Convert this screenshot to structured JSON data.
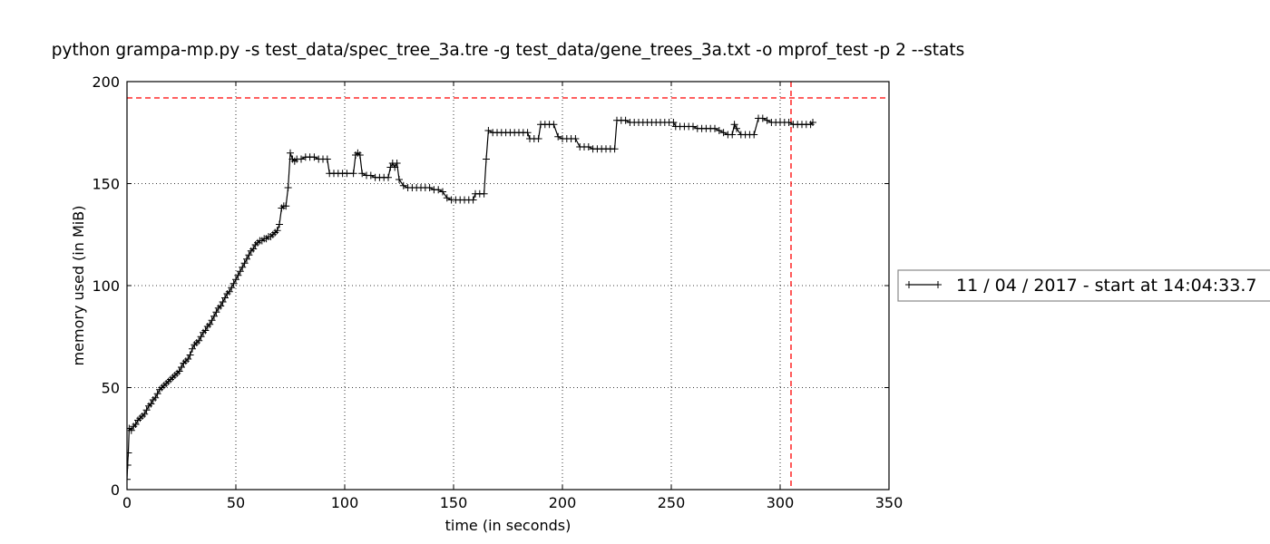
{
  "chart_data": {
    "type": "line",
    "title": "python grampa-mp.py -s test_data/spec_tree_3a.tre -g test_data/gene_trees_3a.txt -o mprof_test -p 2 --stats",
    "xlabel": "time (in seconds)",
    "ylabel": "memory used (in MiB)",
    "xlim": [
      0,
      350
    ],
    "ylim": [
      0,
      200
    ],
    "x_ticks": [
      0,
      50,
      100,
      150,
      200,
      250,
      300,
      350
    ],
    "y_ticks": [
      0,
      50,
      100,
      150,
      200
    ],
    "x_tick_labels": [
      "0",
      "50",
      "100",
      "150",
      "200",
      "250",
      "300",
      "350"
    ],
    "y_tick_labels": [
      "0",
      "50",
      "100",
      "150",
      "200"
    ],
    "grid": true,
    "legend": {
      "label": "11 / 04 / 2017 - start at 14:04:33.7",
      "placement": "outside-right"
    },
    "series": [
      {
        "name": "11 / 04 / 2017 - start at 14:04:33.7",
        "color": "#000000",
        "marker": "+",
        "points": [
          [
            0,
            5
          ],
          [
            0.3,
            12
          ],
          [
            0.6,
            18
          ],
          [
            1,
            30
          ],
          [
            2,
            29
          ],
          [
            3,
            31
          ],
          [
            4,
            32
          ],
          [
            5,
            34
          ],
          [
            6,
            35
          ],
          [
            7,
            36
          ],
          [
            8,
            37
          ],
          [
            9,
            39
          ],
          [
            10,
            41
          ],
          [
            11,
            42
          ],
          [
            12,
            44
          ],
          [
            13,
            45
          ],
          [
            14,
            47
          ],
          [
            15,
            49
          ],
          [
            16,
            50
          ],
          [
            17,
            51
          ],
          [
            18,
            52
          ],
          [
            19,
            53
          ],
          [
            20,
            54
          ],
          [
            21,
            55
          ],
          [
            22,
            56
          ],
          [
            23,
            57
          ],
          [
            24,
            58
          ],
          [
            25,
            60
          ],
          [
            26,
            62
          ],
          [
            27,
            63
          ],
          [
            28,
            64
          ],
          [
            29,
            66
          ],
          [
            30,
            69
          ],
          [
            31,
            71
          ],
          [
            32,
            72
          ],
          [
            33,
            73
          ],
          [
            34,
            75
          ],
          [
            35,
            77
          ],
          [
            36,
            78
          ],
          [
            37,
            80
          ],
          [
            38,
            81
          ],
          [
            39,
            83
          ],
          [
            40,
            85
          ],
          [
            41,
            87
          ],
          [
            42,
            89
          ],
          [
            43,
            90
          ],
          [
            44,
            92
          ],
          [
            45,
            94
          ],
          [
            46,
            96
          ],
          [
            47,
            97
          ],
          [
            48,
            99
          ],
          [
            49,
            101
          ],
          [
            50,
            103
          ],
          [
            51,
            105
          ],
          [
            52,
            107
          ],
          [
            53,
            109
          ],
          [
            54,
            111
          ],
          [
            55,
            113
          ],
          [
            56,
            115
          ],
          [
            57,
            117
          ],
          [
            58,
            118
          ],
          [
            59,
            120
          ],
          [
            60,
            121
          ],
          [
            61,
            122
          ],
          [
            62,
            122
          ],
          [
            63,
            123
          ],
          [
            64,
            123
          ],
          [
            65,
            124
          ],
          [
            66,
            124
          ],
          [
            67,
            125
          ],
          [
            68,
            126
          ],
          [
            69,
            127
          ],
          [
            70,
            130
          ],
          [
            71,
            138
          ],
          [
            72,
            139
          ],
          [
            73,
            139
          ],
          [
            74,
            148
          ],
          [
            75,
            165
          ],
          [
            76,
            162
          ],
          [
            77,
            161
          ],
          [
            78,
            162
          ],
          [
            80,
            162
          ],
          [
            82,
            163
          ],
          [
            84,
            163
          ],
          [
            86,
            163
          ],
          [
            88,
            162
          ],
          [
            90,
            162
          ],
          [
            92,
            162
          ],
          [
            93,
            155
          ],
          [
            95,
            155
          ],
          [
            97,
            155
          ],
          [
            99,
            155
          ],
          [
            101,
            155
          ],
          [
            104,
            155
          ],
          [
            105,
            164
          ],
          [
            106,
            165
          ],
          [
            107,
            164
          ],
          [
            108,
            155
          ],
          [
            110,
            154
          ],
          [
            112,
            154
          ],
          [
            114,
            153
          ],
          [
            116,
            153
          ],
          [
            118,
            153
          ],
          [
            120,
            153
          ],
          [
            121,
            158
          ],
          [
            122,
            160
          ],
          [
            123,
            158
          ],
          [
            124,
            160
          ],
          [
            125,
            152
          ],
          [
            127,
            149
          ],
          [
            129,
            148
          ],
          [
            131,
            148
          ],
          [
            133,
            148
          ],
          [
            135,
            148
          ],
          [
            137,
            148
          ],
          [
            139,
            148
          ],
          [
            141,
            147
          ],
          [
            143,
            147
          ],
          [
            145,
            146
          ],
          [
            147,
            143
          ],
          [
            149,
            142
          ],
          [
            151,
            142
          ],
          [
            153,
            142
          ],
          [
            155,
            142
          ],
          [
            157,
            142
          ],
          [
            159,
            142
          ],
          [
            160,
            145
          ],
          [
            162,
            145
          ],
          [
            164,
            145
          ],
          [
            165,
            162
          ],
          [
            166,
            176
          ],
          [
            168,
            175
          ],
          [
            170,
            175
          ],
          [
            172,
            175
          ],
          [
            174,
            175
          ],
          [
            176,
            175
          ],
          [
            178,
            175
          ],
          [
            180,
            175
          ],
          [
            182,
            175
          ],
          [
            184,
            175
          ],
          [
            185,
            172
          ],
          [
            187,
            172
          ],
          [
            189,
            172
          ],
          [
            190,
            179
          ],
          [
            192,
            179
          ],
          [
            194,
            179
          ],
          [
            196,
            179
          ],
          [
            198,
            173
          ],
          [
            200,
            172
          ],
          [
            202,
            172
          ],
          [
            204,
            172
          ],
          [
            206,
            172
          ],
          [
            208,
            168
          ],
          [
            210,
            168
          ],
          [
            212,
            168
          ],
          [
            214,
            167
          ],
          [
            216,
            167
          ],
          [
            218,
            167
          ],
          [
            220,
            167
          ],
          [
            222,
            167
          ],
          [
            224,
            167
          ],
          [
            225,
            181
          ],
          [
            227,
            181
          ],
          [
            229,
            181
          ],
          [
            231,
            180
          ],
          [
            233,
            180
          ],
          [
            235,
            180
          ],
          [
            237,
            180
          ],
          [
            239,
            180
          ],
          [
            241,
            180
          ],
          [
            243,
            180
          ],
          [
            245,
            180
          ],
          [
            247,
            180
          ],
          [
            249,
            180
          ],
          [
            251,
            180
          ],
          [
            252,
            178
          ],
          [
            254,
            178
          ],
          [
            256,
            178
          ],
          [
            258,
            178
          ],
          [
            260,
            178
          ],
          [
            262,
            177
          ],
          [
            264,
            177
          ],
          [
            266,
            177
          ],
          [
            268,
            177
          ],
          [
            270,
            177
          ],
          [
            272,
            176
          ],
          [
            274,
            175
          ],
          [
            276,
            174
          ],
          [
            278,
            174
          ],
          [
            279,
            179
          ],
          [
            280,
            177
          ],
          [
            282,
            174
          ],
          [
            284,
            174
          ],
          [
            286,
            174
          ],
          [
            288,
            174
          ],
          [
            290,
            182
          ],
          [
            292,
            182
          ],
          [
            294,
            181
          ],
          [
            296,
            180
          ],
          [
            298,
            180
          ],
          [
            300,
            180
          ],
          [
            302,
            180
          ],
          [
            304,
            180
          ],
          [
            306,
            179
          ],
          [
            308,
            179
          ],
          [
            310,
            179
          ],
          [
            312,
            179
          ],
          [
            314,
            179
          ],
          [
            315,
            180
          ]
        ]
      }
    ],
    "reference_lines": [
      {
        "type": "horizontal",
        "y": 192,
        "color": "#ff0000",
        "style": "dashed"
      },
      {
        "type": "vertical",
        "x": 305,
        "color": "#ff0000",
        "style": "dashed"
      }
    ]
  }
}
